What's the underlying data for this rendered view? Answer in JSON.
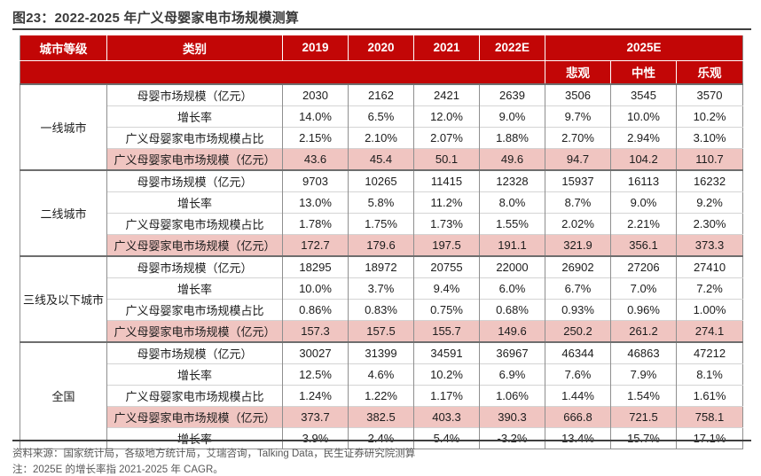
{
  "title": "图23：2022-2025 年广义母婴家电市场规模测算",
  "colors": {
    "header_red": "#C20606",
    "highlight_pink": "#F0C5C1",
    "rule_dark": "#3f3f3f",
    "footer_gray": "#595959"
  },
  "chart_data": {
    "type": "table",
    "title": "2022-2025 年广义母婴家电市场规模测算",
    "col_headers_row1": [
      "城市等级",
      "类别",
      "2019",
      "2020",
      "2021",
      "2022E",
      "2025E"
    ],
    "col_headers_row2": [
      "悲观",
      "中性",
      "乐观"
    ],
    "groups": [
      {
        "city": "一线城市",
        "rows": [
          {
            "label": "母婴市场规模（亿元）",
            "highlight": false,
            "values": [
              "2030",
              "2162",
              "2421",
              "2639",
              "3506",
              "3545",
              "3570"
            ]
          },
          {
            "label": "增长率",
            "highlight": false,
            "values": [
              "14.0%",
              "6.5%",
              "12.0%",
              "9.0%",
              "9.7%",
              "10.0%",
              "10.2%"
            ]
          },
          {
            "label": "广义母婴家电市场规模占比",
            "highlight": false,
            "values": [
              "2.15%",
              "2.10%",
              "2.07%",
              "1.88%",
              "2.70%",
              "2.94%",
              "3.10%"
            ]
          },
          {
            "label": "广义母婴家电市场规模（亿元）",
            "highlight": true,
            "values": [
              "43.6",
              "45.4",
              "50.1",
              "49.6",
              "94.7",
              "104.2",
              "110.7"
            ]
          }
        ]
      },
      {
        "city": "二线城市",
        "rows": [
          {
            "label": "母婴市场规模（亿元）",
            "highlight": false,
            "values": [
              "9703",
              "10265",
              "11415",
              "12328",
              "15937",
              "16113",
              "16232"
            ]
          },
          {
            "label": "增长率",
            "highlight": false,
            "values": [
              "13.0%",
              "5.8%",
              "11.2%",
              "8.0%",
              "8.7%",
              "9.0%",
              "9.2%"
            ]
          },
          {
            "label": "广义母婴家电市场规模占比",
            "highlight": false,
            "values": [
              "1.78%",
              "1.75%",
              "1.73%",
              "1.55%",
              "2.02%",
              "2.21%",
              "2.30%"
            ]
          },
          {
            "label": "广义母婴家电市场规模（亿元）",
            "highlight": true,
            "values": [
              "172.7",
              "179.6",
              "197.5",
              "191.1",
              "321.9",
              "356.1",
              "373.3"
            ]
          }
        ]
      },
      {
        "city": "三线及以下城市",
        "rows": [
          {
            "label": "母婴市场规模（亿元）",
            "highlight": false,
            "values": [
              "18295",
              "18972",
              "20755",
              "22000",
              "26902",
              "27206",
              "27410"
            ]
          },
          {
            "label": "增长率",
            "highlight": false,
            "values": [
              "10.0%",
              "3.7%",
              "9.4%",
              "6.0%",
              "6.7%",
              "7.0%",
              "7.2%"
            ]
          },
          {
            "label": "广义母婴家电市场规模占比",
            "highlight": false,
            "values": [
              "0.86%",
              "0.83%",
              "0.75%",
              "0.68%",
              "0.93%",
              "0.96%",
              "1.00%"
            ]
          },
          {
            "label": "广义母婴家电市场规模（亿元）",
            "highlight": true,
            "values": [
              "157.3",
              "157.5",
              "155.7",
              "149.6",
              "250.2",
              "261.2",
              "274.1"
            ]
          }
        ]
      },
      {
        "city": "全国",
        "rows": [
          {
            "label": "母婴市场规模（亿元）",
            "highlight": false,
            "values": [
              "30027",
              "31399",
              "34591",
              "36967",
              "46344",
              "46863",
              "47212"
            ]
          },
          {
            "label": "增长率",
            "highlight": false,
            "values": [
              "12.5%",
              "4.6%",
              "10.2%",
              "6.9%",
              "7.6%",
              "7.9%",
              "8.1%"
            ]
          },
          {
            "label": "广义母婴家电市场规模占比",
            "highlight": false,
            "values": [
              "1.24%",
              "1.22%",
              "1.17%",
              "1.06%",
              "1.44%",
              "1.54%",
              "1.61%"
            ]
          },
          {
            "label": "广义母婴家电市场规模（亿元）",
            "highlight": true,
            "values": [
              "373.7",
              "382.5",
              "403.3",
              "390.3",
              "666.8",
              "721.5",
              "758.1"
            ]
          },
          {
            "label": "增长率",
            "highlight": false,
            "values": [
              "3.9%",
              "2.4%",
              "5.4%",
              "-3.2%",
              "13.4%",
              "15.7%",
              "17.1%"
            ]
          }
        ]
      }
    ]
  },
  "footer": {
    "source": "资料来源：国家统计局，各级地方统计局，艾瑞咨询，Talking Data，民生证券研究院测算",
    "note": "注：2025E 的增长率指 2021-2025 年 CAGR。"
  }
}
